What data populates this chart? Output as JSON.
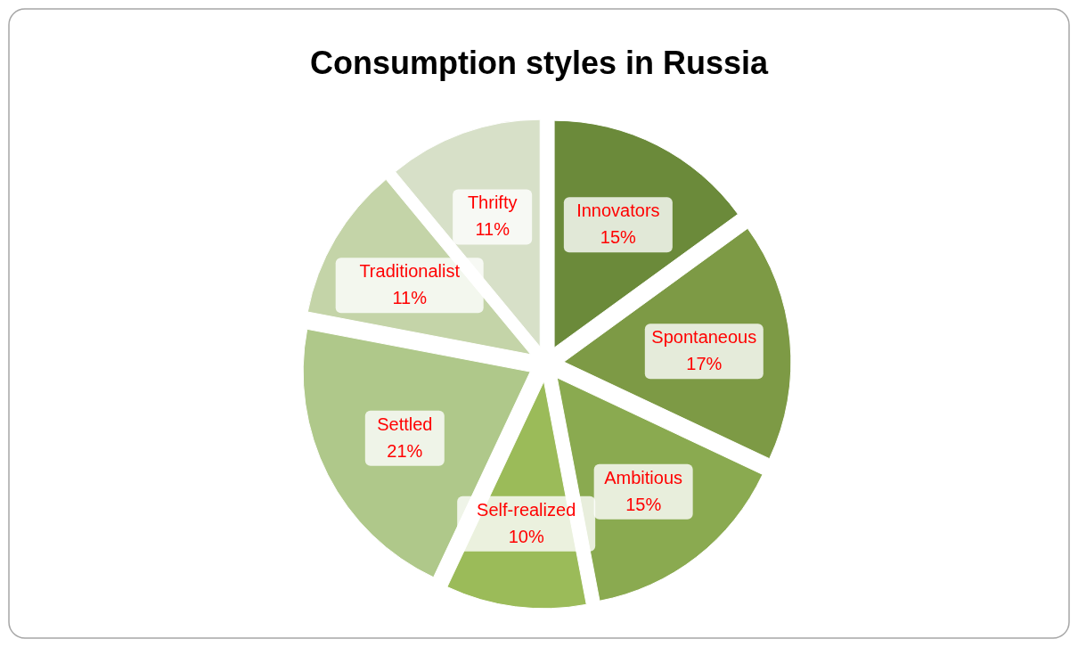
{
  "chart_data": {
    "type": "pie",
    "title": "Consumption styles in Russia",
    "categories": [
      "Innovators",
      "Spontaneous",
      "Ambitious",
      "Self-realized",
      "Settled",
      "Traditionalist",
      "Thrifty"
    ],
    "values": [
      15,
      17,
      15,
      10,
      21,
      11,
      11
    ],
    "colors": [
      "#6b8a3a",
      "#7d9a45",
      "#8aaa50",
      "#9bbb59",
      "#afc88a",
      "#c4d4a8",
      "#d7e0c8"
    ],
    "value_labels": [
      "15%",
      "17%",
      "15%",
      "10%",
      "21%",
      "11%",
      "11%"
    ]
  }
}
